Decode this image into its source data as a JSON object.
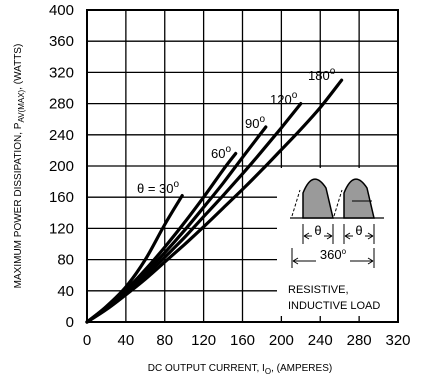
{
  "chart_data": {
    "type": "line",
    "title": "",
    "xlabel": {
      "main": "DC OUTPUT CURRENT, I",
      "sub": "O",
      "tail": ", (AMPERES)"
    },
    "ylabel": {
      "main": "MAXIMUM POWER DISSIPATION, P",
      "sub": "AV(MAX)",
      "tail": ", (WATTS)"
    },
    "xlim": [
      0,
      320
    ],
    "ylim": [
      0,
      400
    ],
    "x_ticks": [
      0,
      40,
      80,
      120,
      160,
      200,
      240,
      280,
      320
    ],
    "y_ticks": [
      0,
      40,
      80,
      120,
      160,
      200,
      240,
      280,
      320,
      360,
      400
    ],
    "grid": true,
    "series": [
      {
        "name": "θ = 30",
        "label_sup": "o",
        "points": [
          [
            0,
            0
          ],
          [
            20,
            20
          ],
          [
            40,
            45
          ],
          [
            60,
            80
          ],
          [
            80,
            125
          ],
          [
            98,
            162
          ]
        ]
      },
      {
        "name": "60",
        "label_sup": "o",
        "points": [
          [
            0,
            0
          ],
          [
            20,
            19
          ],
          [
            40,
            41
          ],
          [
            60,
            67
          ],
          [
            80,
            96
          ],
          [
            100,
            127
          ],
          [
            120,
            160
          ],
          [
            140,
            195
          ],
          [
            153,
            216
          ]
        ]
      },
      {
        "name": "90",
        "label_sup": "o",
        "points": [
          [
            0,
            0
          ],
          [
            20,
            18
          ],
          [
            40,
            39
          ],
          [
            60,
            63
          ],
          [
            80,
            89
          ],
          [
            100,
            117
          ],
          [
            120,
            147
          ],
          [
            140,
            178
          ],
          [
            160,
            211
          ],
          [
            184,
            250
          ]
        ]
      },
      {
        "name": "120",
        "label_sup": "o",
        "points": [
          [
            0,
            0
          ],
          [
            20,
            17
          ],
          [
            40,
            37
          ],
          [
            60,
            59
          ],
          [
            80,
            83
          ],
          [
            100,
            108
          ],
          [
            120,
            135
          ],
          [
            140,
            162
          ],
          [
            160,
            190
          ],
          [
            180,
            219
          ],
          [
            200,
            249
          ],
          [
            220,
            280
          ]
        ]
      },
      {
        "name": "180",
        "label_sup": "o",
        "points": [
          [
            0,
            0
          ],
          [
            20,
            16
          ],
          [
            40,
            35
          ],
          [
            60,
            55
          ],
          [
            80,
            77
          ],
          [
            100,
            99
          ],
          [
            120,
            122
          ],
          [
            140,
            146
          ],
          [
            160,
            170
          ],
          [
            180,
            195
          ],
          [
            200,
            221
          ],
          [
            220,
            247
          ],
          [
            240,
            275
          ],
          [
            262,
            310
          ]
        ]
      }
    ],
    "inset": {
      "theta_symbol": "θ",
      "period_label": "360",
      "period_sup": "o",
      "load_line1": "RESISTIVE,",
      "load_line2": "INDUCTIVE LOAD"
    }
  }
}
